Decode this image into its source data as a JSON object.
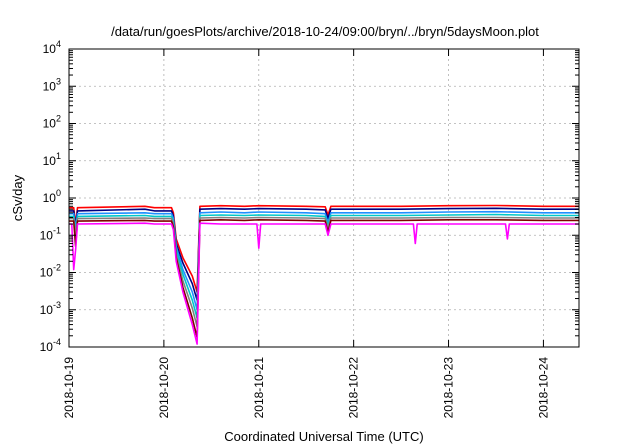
{
  "chart_data": {
    "type": "line",
    "title": "/data/run/goesPlots/archive/2018-10-24/09:00/bryn/../bryn/5daysMoon.plot",
    "xlabel": "Coordinated Universal Time (UTC)",
    "ylabel": "cSv/day",
    "y_scale": "log",
    "ylim": [
      0.0001,
      10000
    ],
    "y_ticks": [
      {
        "base": "10",
        "exp": "-4",
        "value": 0.0001
      },
      {
        "base": "10",
        "exp": "-3",
        "value": 0.001
      },
      {
        "base": "10",
        "exp": "-2",
        "value": 0.01
      },
      {
        "base": "10",
        "exp": "-1",
        "value": 0.1
      },
      {
        "base": "10",
        "exp": "0",
        "value": 1
      },
      {
        "base": "10",
        "exp": "1",
        "value": 10
      },
      {
        "base": "10",
        "exp": "2",
        "value": 100
      },
      {
        "base": "10",
        "exp": "3",
        "value": 1000
      },
      {
        "base": "10",
        "exp": "4",
        "value": 10000
      }
    ],
    "x_ticks": [
      "2018-10-19",
      "2018-10-20",
      "2018-10-21",
      "2018-10-22",
      "2018-10-23",
      "2018-10-24"
    ],
    "x_start": "2018-10-19T00:00",
    "x_end": "2018-10-24T09:00",
    "grid": true,
    "legend": "none",
    "series": [
      {
        "color": "#ff0000",
        "values": [
          [
            0.0,
            0.55
          ],
          [
            0.05,
            0.55
          ],
          [
            0.07,
            0.2
          ],
          [
            0.09,
            0.55
          ],
          [
            0.8,
            0.6
          ],
          [
            0.9,
            0.55
          ],
          [
            1.08,
            0.55
          ],
          [
            1.1,
            0.4
          ],
          [
            1.13,
            0.08
          ],
          [
            1.2,
            0.025
          ],
          [
            1.3,
            0.008
          ],
          [
            1.35,
            0.003
          ],
          [
            1.38,
            0.6
          ],
          [
            1.6,
            0.62
          ],
          [
            1.85,
            0.6
          ],
          [
            2.0,
            0.62
          ],
          [
            2.5,
            0.6
          ],
          [
            2.7,
            0.58
          ],
          [
            2.73,
            0.35
          ],
          [
            2.76,
            0.6
          ],
          [
            3.5,
            0.6
          ],
          [
            4.0,
            0.62
          ],
          [
            4.5,
            0.63
          ],
          [
            5.0,
            0.6
          ],
          [
            5.375,
            0.6
          ]
        ]
      },
      {
        "color": "#000080",
        "values": [
          [
            0.0,
            0.45
          ],
          [
            0.05,
            0.45
          ],
          [
            0.07,
            0.18
          ],
          [
            0.09,
            0.45
          ],
          [
            0.8,
            0.5
          ],
          [
            0.9,
            0.45
          ],
          [
            1.08,
            0.45
          ],
          [
            1.1,
            0.33
          ],
          [
            1.13,
            0.06
          ],
          [
            1.2,
            0.018
          ],
          [
            1.3,
            0.005
          ],
          [
            1.35,
            0.0018
          ],
          [
            1.38,
            0.5
          ],
          [
            1.6,
            0.52
          ],
          [
            1.85,
            0.5
          ],
          [
            2.0,
            0.52
          ],
          [
            2.5,
            0.5
          ],
          [
            2.7,
            0.48
          ],
          [
            2.73,
            0.28
          ],
          [
            2.76,
            0.5
          ],
          [
            3.5,
            0.5
          ],
          [
            4.0,
            0.52
          ],
          [
            4.5,
            0.53
          ],
          [
            5.0,
            0.5
          ],
          [
            5.375,
            0.5
          ]
        ]
      },
      {
        "color": "#1e90ff",
        "values": [
          [
            0.0,
            0.38
          ],
          [
            0.05,
            0.38
          ],
          [
            0.07,
            0.15
          ],
          [
            0.09,
            0.38
          ],
          [
            0.8,
            0.4
          ],
          [
            0.9,
            0.38
          ],
          [
            1.08,
            0.38
          ],
          [
            1.1,
            0.28
          ],
          [
            1.13,
            0.05
          ],
          [
            1.2,
            0.012
          ],
          [
            1.3,
            0.003
          ],
          [
            1.35,
            0.001
          ],
          [
            1.38,
            0.4
          ],
          [
            1.6,
            0.42
          ],
          [
            1.85,
            0.4
          ],
          [
            2.0,
            0.42
          ],
          [
            2.5,
            0.4
          ],
          [
            2.7,
            0.38
          ],
          [
            2.73,
            0.22
          ],
          [
            2.76,
            0.4
          ],
          [
            3.5,
            0.4
          ],
          [
            4.0,
            0.42
          ],
          [
            4.5,
            0.43
          ],
          [
            5.0,
            0.4
          ],
          [
            5.375,
            0.4
          ]
        ]
      },
      {
        "color": "#00c8c8",
        "values": [
          [
            0.0,
            0.32
          ],
          [
            0.05,
            0.32
          ],
          [
            0.07,
            0.12
          ],
          [
            0.09,
            0.32
          ],
          [
            0.8,
            0.34
          ],
          [
            0.9,
            0.32
          ],
          [
            1.08,
            0.32
          ],
          [
            1.1,
            0.23
          ],
          [
            1.13,
            0.04
          ],
          [
            1.2,
            0.009
          ],
          [
            1.3,
            0.0018
          ],
          [
            1.35,
            0.0006
          ],
          [
            1.38,
            0.34
          ],
          [
            1.6,
            0.35
          ],
          [
            1.85,
            0.34
          ],
          [
            2.0,
            0.35
          ],
          [
            2.5,
            0.34
          ],
          [
            2.7,
            0.32
          ],
          [
            2.73,
            0.18
          ],
          [
            2.76,
            0.34
          ],
          [
            3.5,
            0.34
          ],
          [
            4.0,
            0.35
          ],
          [
            4.5,
            0.36
          ],
          [
            5.0,
            0.34
          ],
          [
            5.375,
            0.34
          ]
        ]
      },
      {
        "color": "#808080",
        "values": [
          [
            0.0,
            0.28
          ],
          [
            0.05,
            0.28
          ],
          [
            0.07,
            0.1
          ],
          [
            0.09,
            0.28
          ],
          [
            0.8,
            0.29
          ],
          [
            0.9,
            0.28
          ],
          [
            1.08,
            0.28
          ],
          [
            1.1,
            0.2
          ],
          [
            1.13,
            0.03
          ],
          [
            1.2,
            0.006
          ],
          [
            1.3,
            0.0011
          ],
          [
            1.35,
            0.00035
          ],
          [
            1.38,
            0.29
          ],
          [
            1.6,
            0.3
          ],
          [
            1.85,
            0.29
          ],
          [
            2.0,
            0.3
          ],
          [
            2.5,
            0.29
          ],
          [
            2.7,
            0.28
          ],
          [
            2.73,
            0.15
          ],
          [
            2.76,
            0.29
          ],
          [
            3.5,
            0.29
          ],
          [
            4.0,
            0.3
          ],
          [
            4.5,
            0.3
          ],
          [
            5.0,
            0.29
          ],
          [
            5.375,
            0.29
          ]
        ]
      },
      {
        "color": "#800000",
        "values": [
          [
            0.0,
            0.24
          ],
          [
            0.05,
            0.24
          ],
          [
            0.07,
            0.05
          ],
          [
            0.09,
            0.24
          ],
          [
            0.8,
            0.25
          ],
          [
            0.9,
            0.24
          ],
          [
            1.08,
            0.24
          ],
          [
            1.1,
            0.17
          ],
          [
            1.13,
            0.025
          ],
          [
            1.2,
            0.004
          ],
          [
            1.3,
            0.0006
          ],
          [
            1.35,
            0.00018
          ],
          [
            1.38,
            0.25
          ],
          [
            1.6,
            0.26
          ],
          [
            1.85,
            0.25
          ],
          [
            2.0,
            0.26
          ],
          [
            2.5,
            0.25
          ],
          [
            2.7,
            0.24
          ],
          [
            2.73,
            0.12
          ],
          [
            2.76,
            0.25
          ],
          [
            3.5,
            0.25
          ],
          [
            4.0,
            0.26
          ],
          [
            4.5,
            0.26
          ],
          [
            5.0,
            0.25
          ],
          [
            5.375,
            0.25
          ]
        ]
      },
      {
        "color": "#ff00ff",
        "values": [
          [
            0.0,
            0.2
          ],
          [
            0.03,
            0.2
          ],
          [
            0.05,
            0.012
          ],
          [
            0.07,
            0.04
          ],
          [
            0.09,
            0.2
          ],
          [
            0.8,
            0.21
          ],
          [
            0.9,
            0.2
          ],
          [
            1.08,
            0.2
          ],
          [
            1.1,
            0.14
          ],
          [
            1.13,
            0.02
          ],
          [
            1.2,
            0.003
          ],
          [
            1.3,
            0.0004
          ],
          [
            1.35,
            0.00012
          ],
          [
            1.38,
            0.21
          ],
          [
            1.6,
            0.2
          ],
          [
            1.85,
            0.2
          ],
          [
            1.98,
            0.2
          ],
          [
            2.0,
            0.045
          ],
          [
            2.02,
            0.2
          ],
          [
            2.5,
            0.2
          ],
          [
            2.7,
            0.2
          ],
          [
            2.73,
            0.1
          ],
          [
            2.76,
            0.2
          ],
          [
            3.5,
            0.2
          ],
          [
            3.63,
            0.2
          ],
          [
            3.65,
            0.06
          ],
          [
            3.67,
            0.2
          ],
          [
            4.0,
            0.2
          ],
          [
            4.5,
            0.2
          ],
          [
            4.6,
            0.2
          ],
          [
            4.62,
            0.08
          ],
          [
            4.64,
            0.2
          ],
          [
            5.0,
            0.2
          ],
          [
            5.375,
            0.2
          ]
        ]
      }
    ]
  }
}
